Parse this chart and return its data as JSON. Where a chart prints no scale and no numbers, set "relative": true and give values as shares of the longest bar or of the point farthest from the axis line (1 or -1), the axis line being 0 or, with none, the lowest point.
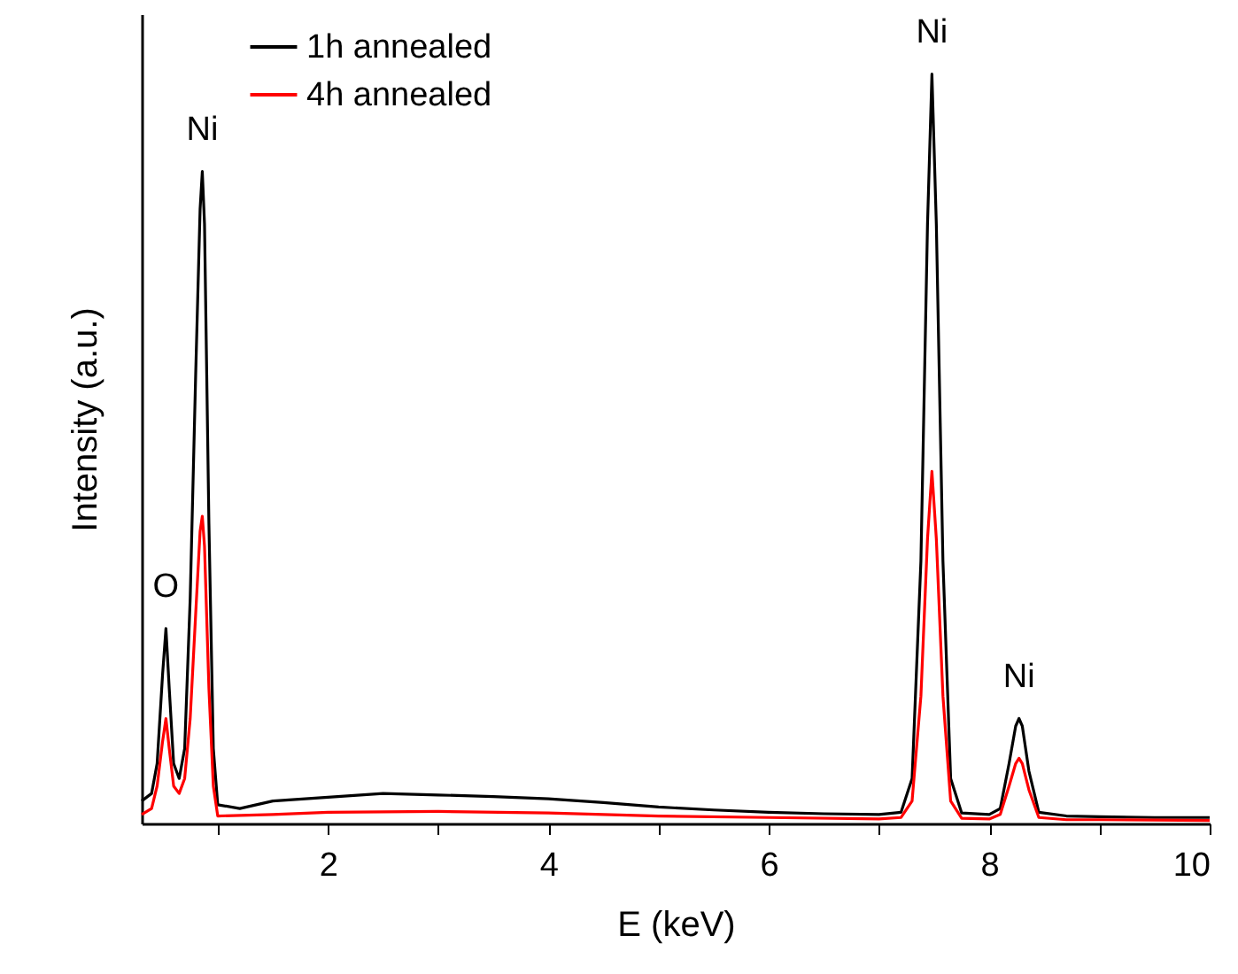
{
  "chart_data": {
    "type": "line",
    "xlabel": "E (keV)",
    "ylabel": "Intensity (a.u.)",
    "relative": true,
    "xlim": [
      0.31,
      10
    ],
    "xticks": [
      {
        "value": 1,
        "label": null
      },
      2,
      {
        "value": 3,
        "label": null
      },
      4,
      {
        "value": 5,
        "label": null
      },
      6,
      {
        "value": 7,
        "label": null
      },
      8,
      {
        "value": 9,
        "label": null
      },
      10
    ],
    "legend": "top left",
    "grid": false,
    "marker": "none",
    "line_style": "solid",
    "annotations": [
      {
        "text": "O",
        "x": 0.53,
        "y": 0.26
      },
      {
        "text": "Ni",
        "x": 0.86,
        "y": 0.87
      },
      {
        "text": "Ni",
        "x": 7.48,
        "y": 1
      },
      {
        "text": "Ni",
        "x": 8.27,
        "y": 0.14
      }
    ],
    "series": [
      {
        "name": "1h annealed",
        "color": "#000000",
        "x": [
          0.31,
          0.4,
          0.45,
          0.5,
          0.53,
          0.56,
          0.6,
          0.65,
          0.7,
          0.75,
          0.8,
          0.84,
          0.86,
          0.88,
          0.92,
          0.96,
          1.0,
          1.2,
          1.5,
          2.0,
          2.5,
          3.0,
          3.5,
          4.0,
          4.5,
          5.0,
          5.5,
          6.0,
          6.5,
          7.0,
          7.2,
          7.3,
          7.38,
          7.44,
          7.48,
          7.52,
          7.58,
          7.65,
          7.75,
          8.0,
          8.1,
          8.18,
          8.24,
          8.27,
          8.3,
          8.36,
          8.45,
          8.7,
          9.0,
          9.5,
          10
        ],
        "values": [
          0.03,
          0.04,
          0.08,
          0.2,
          0.26,
          0.18,
          0.08,
          0.06,
          0.1,
          0.3,
          0.6,
          0.82,
          0.87,
          0.8,
          0.4,
          0.1,
          0.025,
          0.02,
          0.03,
          0.035,
          0.04,
          0.038,
          0.036,
          0.033,
          0.028,
          0.022,
          0.018,
          0.015,
          0.013,
          0.012,
          0.015,
          0.06,
          0.35,
          0.8,
          1,
          0.8,
          0.35,
          0.06,
          0.014,
          0.012,
          0.02,
          0.08,
          0.13,
          0.14,
          0.13,
          0.07,
          0.015,
          0.01,
          0.009,
          0.008,
          0.008
        ]
      },
      {
        "name": "4h annealed",
        "color": "#ff0000",
        "x": [
          0.31,
          0.4,
          0.45,
          0.5,
          0.53,
          0.56,
          0.6,
          0.65,
          0.7,
          0.75,
          0.8,
          0.84,
          0.86,
          0.88,
          0.92,
          0.96,
          1.0,
          1.5,
          2.0,
          3.0,
          4.0,
          5.0,
          6.0,
          7.0,
          7.2,
          7.3,
          7.38,
          7.44,
          7.48,
          7.52,
          7.58,
          7.65,
          7.75,
          8.0,
          8.1,
          8.18,
          8.24,
          8.27,
          8.3,
          8.36,
          8.45,
          8.7,
          9.0,
          10
        ],
        "values": [
          0.012,
          0.02,
          0.05,
          0.11,
          0.14,
          0.1,
          0.05,
          0.04,
          0.06,
          0.14,
          0.28,
          0.39,
          0.41,
          0.37,
          0.18,
          0.05,
          0.01,
          0.012,
          0.015,
          0.016,
          0.014,
          0.01,
          0.008,
          0.006,
          0.008,
          0.03,
          0.17,
          0.38,
          0.47,
          0.38,
          0.17,
          0.03,
          0.007,
          0.006,
          0.012,
          0.05,
          0.08,
          0.087,
          0.08,
          0.045,
          0.008,
          0.005,
          0.005,
          0.004
        ]
      }
    ]
  }
}
